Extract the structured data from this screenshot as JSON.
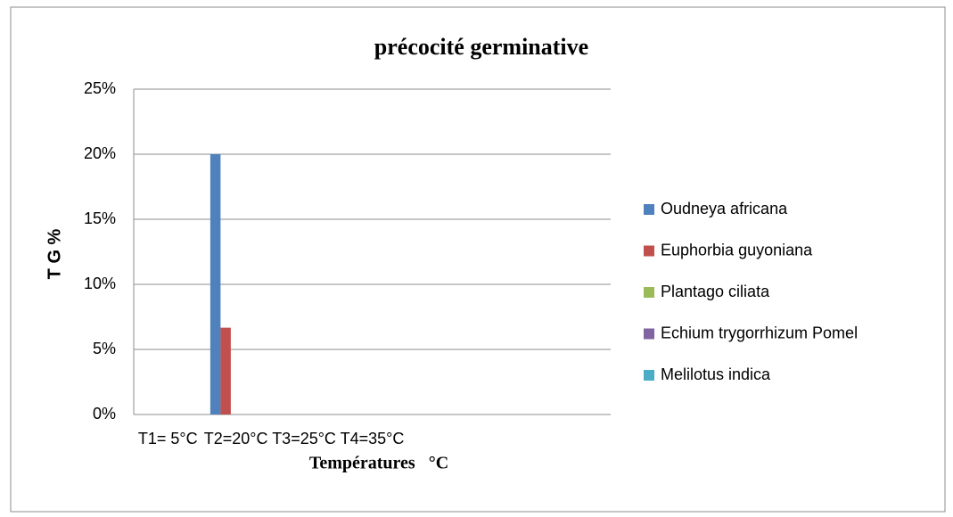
{
  "chart_data": {
    "type": "bar",
    "title": "précocité germinative",
    "x_label": "Températures   °C",
    "y_label": "T G %",
    "categories": [
      "T1= 5°C",
      "T2=20°C",
      "T3=25°C",
      "T4=35°C",
      null,
      null,
      null
    ],
    "series": [
      {
        "name": "Oudneya africana",
        "color": "#4f81bd",
        "values": [
          0,
          20,
          0,
          0,
          null,
          null,
          null
        ]
      },
      {
        "name": "Euphorbia guyoniana",
        "color": "#c0504d",
        "values": [
          0,
          6.67,
          0,
          0,
          null,
          null,
          null
        ]
      },
      {
        "name": "Plantago ciliata",
        "color": "#9bbb59",
        "values": [
          0,
          0,
          0,
          0,
          null,
          null,
          null
        ]
      },
      {
        "name": "Echium trygorrhizum Pomel",
        "color": "#8064a2",
        "values": [
          0,
          0,
          0,
          0,
          null,
          null,
          null
        ]
      },
      {
        "name": "Melilotus indica",
        "color": "#4bacc6",
        "values": [
          0,
          0,
          0,
          0,
          null,
          null,
          null
        ]
      }
    ],
    "ylim": [
      0,
      25
    ],
    "yticks": [
      {
        "value": 0,
        "label": "0%"
      },
      {
        "value": 5,
        "label": "5%"
      },
      {
        "value": 10,
        "label": "10%"
      },
      {
        "value": 15,
        "label": "15%"
      },
      {
        "value": 20,
        "label": "20%"
      },
      {
        "value": 25,
        "label": "25%"
      }
    ],
    "grid": true,
    "legend": "right"
  }
}
